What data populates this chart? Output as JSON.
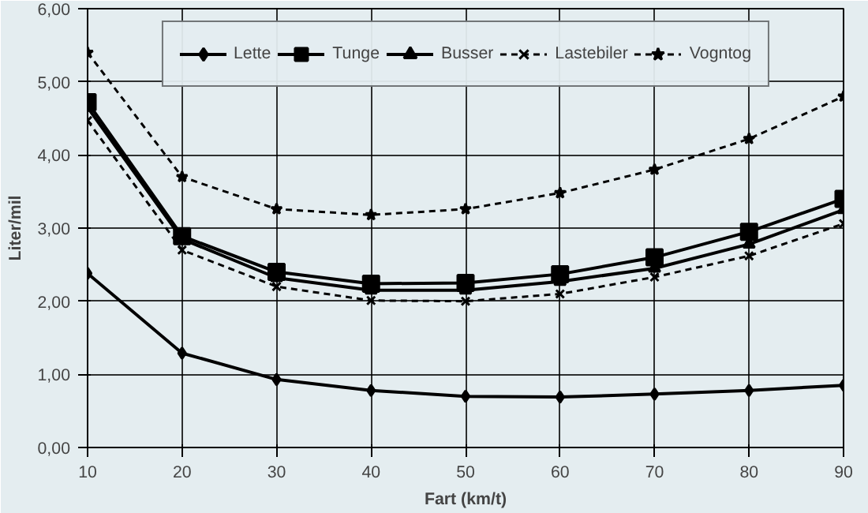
{
  "chart_data": {
    "type": "line",
    "xlabel": "Fart (km/t)",
    "ylabel": "Liter/mil",
    "x": [
      10,
      20,
      30,
      40,
      50,
      60,
      70,
      80,
      90
    ],
    "xlim": [
      10,
      90
    ],
    "xticks": [
      10,
      20,
      30,
      40,
      50,
      60,
      70,
      80,
      90
    ],
    "ylim": [
      0,
      6
    ],
    "yticks": [
      {
        "value": 0,
        "label": "0,00"
      },
      {
        "value": 1,
        "label": "1,00"
      },
      {
        "value": 2,
        "label": "2,00"
      },
      {
        "value": 3,
        "label": "3,00"
      },
      {
        "value": 4,
        "label": "4,00"
      },
      {
        "value": 5,
        "label": "5,00"
      },
      {
        "value": 6,
        "label": "6,00"
      }
    ],
    "grid": true,
    "legend": "top",
    "series": [
      {
        "name": "Lette",
        "color": "#000000",
        "marker": "diamond",
        "line_style": "solid",
        "values": [
          2.38,
          1.29,
          0.93,
          0.78,
          0.7,
          0.69,
          0.73,
          0.78,
          0.85
        ]
      },
      {
        "name": "Tunge",
        "color": "#000000",
        "marker": "square",
        "line_style": "solid",
        "values": [
          4.72,
          2.89,
          2.4,
          2.24,
          2.25,
          2.37,
          2.6,
          2.95,
          3.4
        ]
      },
      {
        "name": "Busser",
        "color": "#000000",
        "marker": "triangle",
        "line_style": "solid",
        "values": [
          4.65,
          2.85,
          2.32,
          2.15,
          2.15,
          2.27,
          2.45,
          2.78,
          3.25
        ]
      },
      {
        "name": "Lastebiler",
        "color": "#000000",
        "marker": "cross",
        "line_style": "dashed",
        "values": [
          4.47,
          2.7,
          2.2,
          2.01,
          2.0,
          2.1,
          2.33,
          2.62,
          3.06
        ]
      },
      {
        "name": "Vogntog",
        "color": "#000000",
        "marker": "star",
        "line_style": "dashed",
        "values": [
          5.4,
          3.7,
          3.26,
          3.18,
          3.26,
          3.48,
          3.8,
          4.22,
          4.8
        ]
      }
    ]
  }
}
